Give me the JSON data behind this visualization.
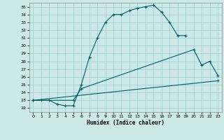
{
  "xlabel": "Humidex (Indice chaleur)",
  "bg_color": "#cce8e8",
  "line_color": "#006060",
  "grid_color": "#99cccc",
  "xlim": [
    -0.5,
    23.5
  ],
  "ylim": [
    21.5,
    35.5
  ],
  "xticks": [
    0,
    1,
    2,
    3,
    4,
    5,
    6,
    7,
    8,
    9,
    10,
    11,
    12,
    13,
    14,
    15,
    16,
    17,
    18,
    19,
    20,
    21,
    22,
    23
  ],
  "yticks": [
    22,
    23,
    24,
    25,
    26,
    27,
    28,
    29,
    30,
    31,
    32,
    33,
    34,
    35
  ],
  "line1_x": [
    0,
    1,
    2,
    3,
    4,
    5,
    6,
    7,
    8,
    9,
    10,
    11,
    12,
    13,
    14,
    15,
    16,
    17,
    18,
    19
  ],
  "line1_y": [
    23.0,
    23.0,
    23.0,
    22.5,
    22.3,
    22.3,
    25.0,
    28.5,
    31.0,
    33.0,
    34.0,
    34.0,
    34.5,
    34.8,
    35.0,
    35.2,
    34.3,
    33.0,
    31.3,
    31.3
  ],
  "line2_x": [
    0,
    5,
    6,
    20,
    21,
    22,
    23
  ],
  "line2_y": [
    23.0,
    23.0,
    24.5,
    29.5,
    27.5,
    28.0,
    26.2
  ],
  "line3_x": [
    0,
    23
  ],
  "line3_y": [
    23.0,
    25.5
  ]
}
